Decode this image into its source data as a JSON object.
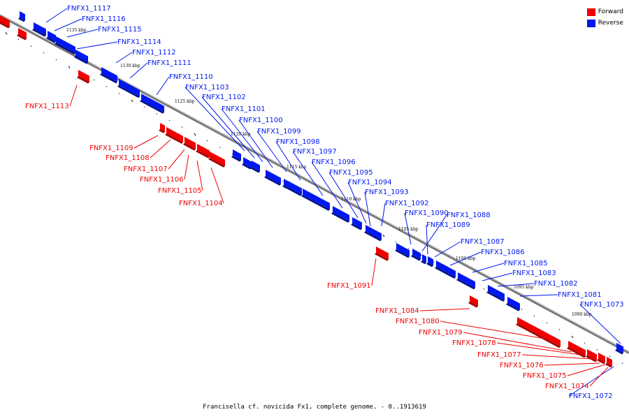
{
  "caption": "Francisella cf. novicida Fx1, complete genome. - 0..1913619",
  "legend": [
    {
      "label": "Forward",
      "color": "#f00000"
    },
    {
      "label": "Reverse",
      "color": "#0018f0"
    }
  ],
  "colors": {
    "forward": "#f00000",
    "reverse": "#0018f0",
    "backbone": "#888888"
  },
  "kbp_ticks": [
    "1135 kbp",
    "1130 kbp",
    "1125 kbp",
    "1120 kbp",
    "1115 kbp",
    "1110 kbp",
    "1105 kbp",
    "1100 kbp",
    "1095 kbp",
    "1090 kbp"
  ],
  "genes": [
    {
      "id": "FNFX1_1117",
      "strand": "reverse"
    },
    {
      "id": "FNFX1_1116",
      "strand": "reverse"
    },
    {
      "id": "FNFX1_1115",
      "strand": "reverse"
    },
    {
      "id": "FNFX1_1114",
      "strand": "reverse"
    },
    {
      "id": "FNFX1_1112",
      "strand": "reverse"
    },
    {
      "id": "FNFX1_1111",
      "strand": "reverse"
    },
    {
      "id": "FNFX1_1113",
      "strand": "forward"
    },
    {
      "id": "FNFX1_1110",
      "strand": "reverse"
    },
    {
      "id": "FNFX1_1103",
      "strand": "reverse"
    },
    {
      "id": "FNFX1_1102",
      "strand": "reverse"
    },
    {
      "id": "FNFX1_1101",
      "strand": "reverse"
    },
    {
      "id": "FNFX1_1100",
      "strand": "reverse"
    },
    {
      "id": "FNFX1_1099",
      "strand": "reverse"
    },
    {
      "id": "FNFX1_1098",
      "strand": "reverse"
    },
    {
      "id": "FNFX1_1097",
      "strand": "reverse"
    },
    {
      "id": "FNFX1_1096",
      "strand": "reverse"
    },
    {
      "id": "FNFX1_1095",
      "strand": "reverse"
    },
    {
      "id": "FNFX1_1094",
      "strand": "reverse"
    },
    {
      "id": "FNFX1_1093",
      "strand": "reverse"
    },
    {
      "id": "FNFX1_1092",
      "strand": "reverse"
    },
    {
      "id": "FNFX1_1090",
      "strand": "reverse"
    },
    {
      "id": "FNFX1_1088",
      "strand": "reverse"
    },
    {
      "id": "FNFX1_1089",
      "strand": "reverse"
    },
    {
      "id": "FNFX1_1087",
      "strand": "reverse"
    },
    {
      "id": "FNFX1_1086",
      "strand": "reverse"
    },
    {
      "id": "FNFX1_1085",
      "strand": "reverse"
    },
    {
      "id": "FNFX1_1083",
      "strand": "reverse"
    },
    {
      "id": "FNFX1_1082",
      "strand": "reverse"
    },
    {
      "id": "FNFX1_1081",
      "strand": "reverse"
    },
    {
      "id": "FNFX1_1073",
      "strand": "reverse"
    },
    {
      "id": "FNFX1_1072",
      "strand": "reverse"
    },
    {
      "id": "FNFX1_1109",
      "strand": "forward"
    },
    {
      "id": "FNFX1_1108",
      "strand": "forward"
    },
    {
      "id": "FNFX1_1107",
      "strand": "forward"
    },
    {
      "id": "FNFX1_1106",
      "strand": "forward"
    },
    {
      "id": "FNFX1_1105",
      "strand": "forward"
    },
    {
      "id": "FNFX1_1104",
      "strand": "forward"
    },
    {
      "id": "FNFX1_1091",
      "strand": "forward"
    },
    {
      "id": "FNFX1_1084",
      "strand": "forward"
    },
    {
      "id": "FNFX1_1080",
      "strand": "forward"
    },
    {
      "id": "FNFX1_1079",
      "strand": "forward"
    },
    {
      "id": "FNFX1_1078",
      "strand": "forward"
    },
    {
      "id": "FNFX1_1077",
      "strand": "forward"
    },
    {
      "id": "FNFX1_1076",
      "strand": "forward"
    },
    {
      "id": "FNFX1_1075",
      "strand": "forward"
    },
    {
      "id": "FNFX1_1074",
      "strand": "forward"
    }
  ]
}
